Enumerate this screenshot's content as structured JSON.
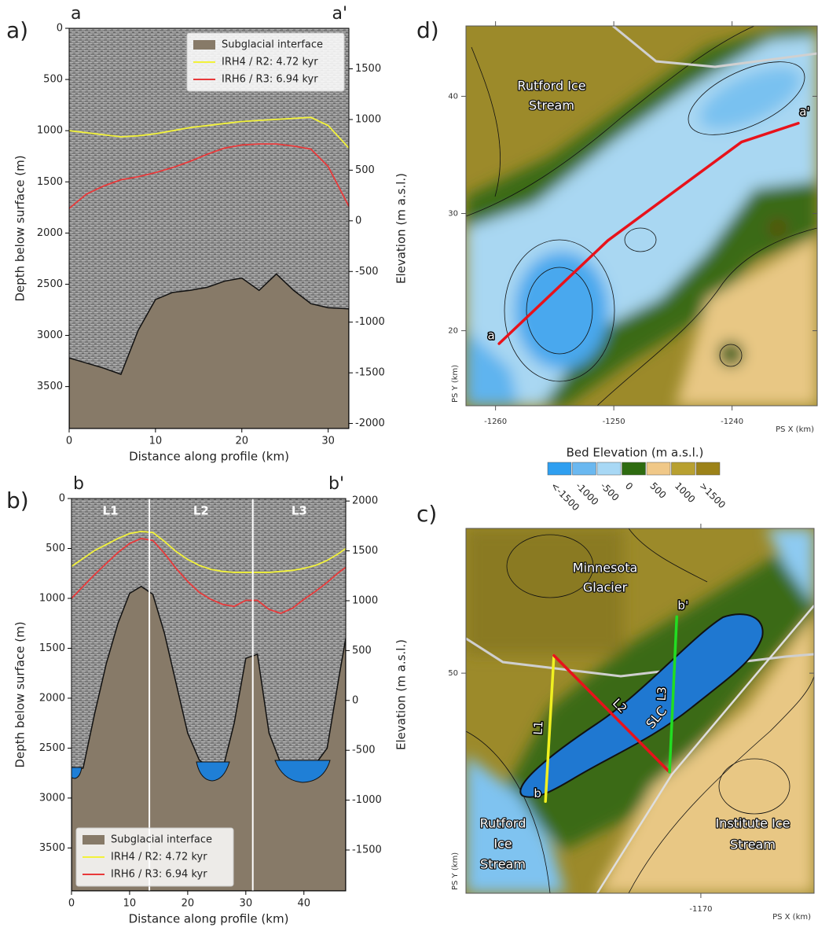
{
  "chart_data": [
    {
      "type": "line",
      "panel_label": "a)",
      "profile_start": "a",
      "profile_end": "a'",
      "x_label": "Distance along profile (km)",
      "y_label": "Depth below surface (m)",
      "y2_label": "Elevation (m a.s.l.)",
      "xlim": [
        0,
        32.4
      ],
      "xticks": [
        0,
        10,
        20,
        30
      ],
      "ylim": [
        3910,
        0
      ],
      "yticks": [
        0,
        500,
        1000,
        1500,
        2000,
        2500,
        3000,
        3500
      ],
      "y2lim": [
        -2050,
        1900
      ],
      "y2ticks": [
        -2000,
        -1500,
        -1000,
        -500,
        0,
        500,
        1000,
        1500
      ],
      "legend": "upper right",
      "x": [
        0,
        2,
        4,
        6,
        8,
        10,
        12,
        14,
        16,
        18,
        20,
        22,
        24,
        26,
        28,
        30,
        32.4
      ],
      "series": [
        {
          "name": "Subglacial interface",
          "color": "#877a68",
          "style": "area",
          "values": [
            3220,
            3270,
            3320,
            3380,
            2950,
            2650,
            2580,
            2560,
            2530,
            2470,
            2440,
            2560,
            2400,
            2560,
            2690,
            2730,
            2740
          ]
        },
        {
          "name": "IRH4 / R2: 4.72 kyr",
          "color": "#f2f23a",
          "style": "line",
          "values": [
            1000,
            1020,
            1040,
            1060,
            1050,
            1030,
            1000,
            970,
            950,
            930,
            910,
            900,
            890,
            880,
            870,
            950,
            1170
          ]
        },
        {
          "name": "IRH6 / R3: 6.94 kyr",
          "color": "#e8393a",
          "style": "line",
          "values": [
            1760,
            1620,
            1540,
            1480,
            1450,
            1410,
            1360,
            1300,
            1230,
            1170,
            1140,
            1130,
            1130,
            1150,
            1180,
            1350,
            1740
          ]
        }
      ]
    },
    {
      "type": "line",
      "panel_label": "b)",
      "profile_start": "b",
      "profile_end": "b'",
      "x_label": "Distance along profile (km)",
      "y_label": "Depth below surface (m)",
      "y2_label": "Elevation (m a.s.l.)",
      "xlim": [
        0,
        47.2
      ],
      "xticks": [
        0,
        10,
        20,
        30,
        40
      ],
      "ylim": [
        3930,
        0
      ],
      "yticks": [
        0,
        500,
        1000,
        1500,
        2000,
        2500,
        3000,
        3500
      ],
      "y2lim": [
        -1910,
        2025
      ],
      "y2ticks": [
        -1500,
        -1000,
        -500,
        0,
        500,
        1000,
        1500,
        2000
      ],
      "legend": "lower left",
      "dividers": [
        13.4,
        31.2
      ],
      "segment_labels": [
        "L1",
        "L2",
        "L3"
      ],
      "x": [
        0,
        2,
        4,
        6,
        8,
        10,
        12,
        14,
        16,
        18,
        20,
        22,
        24,
        26,
        28,
        30,
        32,
        34,
        36,
        38,
        40,
        42,
        44,
        46,
        47.2
      ],
      "series": [
        {
          "name": "Subglacial interface",
          "color": "#877a68",
          "style": "area",
          "values": [
            2720,
            2700,
            2150,
            1650,
            1250,
            950,
            880,
            960,
            1350,
            1850,
            2350,
            2620,
            2700,
            2720,
            2250,
            1600,
            1560,
            2350,
            2650,
            2660,
            2660,
            2660,
            2500,
            1800,
            1400
          ]
        },
        {
          "name": "IRH4 / R2: 4.72 kyr",
          "color": "#f2f23a",
          "style": "line",
          "values": [
            680,
            600,
            520,
            460,
            400,
            350,
            330,
            340,
            430,
            530,
            610,
            670,
            710,
            730,
            740,
            740,
            740,
            740,
            730,
            720,
            700,
            670,
            620,
            550,
            500
          ]
        },
        {
          "name": "IRH6 / R3: 6.94 kyr",
          "color": "#e8393a",
          "style": "line",
          "values": [
            1000,
            880,
            760,
            650,
            540,
            450,
            400,
            420,
            550,
            700,
            830,
            940,
            1010,
            1060,
            1080,
            1020,
            1020,
            1110,
            1150,
            1100,
            1010,
            930,
            840,
            740,
            690
          ]
        }
      ]
    },
    {
      "type": "map",
      "panel_label": "c)",
      "x_label": "PS X (km)",
      "y_label": "PS Y (km)",
      "xlim": [
        -1189.5,
        -1160.6
      ],
      "xticks": [
        -1170
      ],
      "ylim": [
        31.3,
        62.3
      ],
      "yticks": [
        50
      ],
      "start_label": "b",
      "end_label": "b'",
      "series": [
        {
          "name": "L1",
          "color": "#f0f020",
          "x": [
            -1182.9,
            -1182.2
          ],
          "y": [
            39.1,
            51.5
          ]
        },
        {
          "name": "L2",
          "color": "#e8121b",
          "x": [
            -1182.2,
            -1172.6
          ],
          "y": [
            51.5,
            41.6
          ]
        },
        {
          "name": "L3",
          "color": "#22dd22",
          "x": [
            -1172.6,
            -1172.0
          ],
          "y": [
            41.6,
            54.8
          ]
        }
      ],
      "places": [
        [
          "Minnesota",
          "Glacier"
        ],
        [
          "Rutford",
          "Ice",
          "Stream"
        ],
        [
          "Institute Ice",
          "Stream"
        ],
        [
          "SLC"
        ]
      ]
    },
    {
      "type": "map",
      "panel_label": "d)",
      "x_label": "PS X (km)",
      "y_label": "PS Y (km)",
      "xlim": [
        -1262.5,
        -1232.8
      ],
      "xticks": [
        -1260,
        -1250,
        -1240
      ],
      "ylim": [
        13.6,
        46
      ],
      "yticks": [
        20,
        30,
        40
      ],
      "start_label": "a",
      "end_label": "a'",
      "series": [
        {
          "color": "#e8121b",
          "x": [
            -1259.7,
            -1250.5,
            -1239.2,
            -1234.4
          ],
          "y": [
            18.9,
            27.7,
            36.1,
            37.7
          ]
        }
      ],
      "places": [
        [
          "Rutford Ice",
          "Stream"
        ]
      ],
      "colorbar": {
        "title": "Bed Elevation (m a.s.l.)",
        "labels": [
          "<-1500",
          "-1000",
          "-500",
          "0",
          "500",
          "1000",
          ">1500"
        ],
        "colors": [
          "#2f9ff0",
          "#6ab8f0",
          "#a8d8f5",
          "#2e6b10",
          "#f0c888",
          "#b8a030",
          "#9c8218"
        ]
      }
    }
  ]
}
